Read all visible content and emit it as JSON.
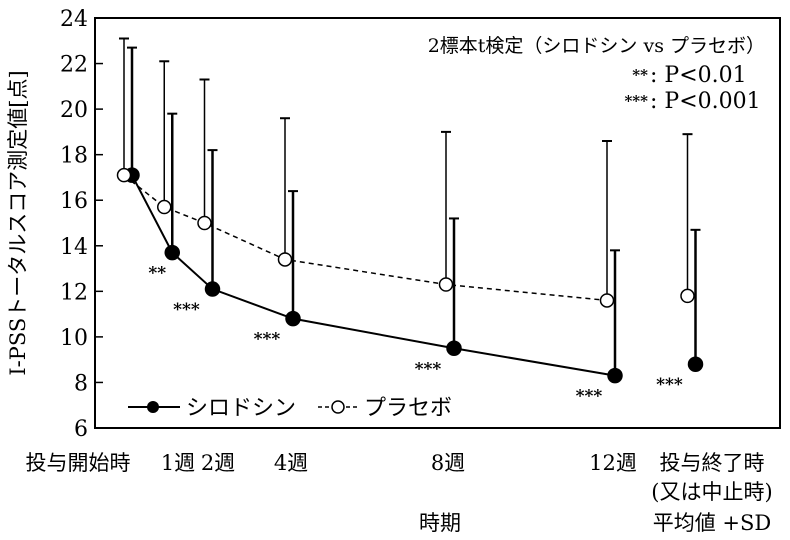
{
  "chart_data": {
    "type": "line",
    "ylabel": "I-PSSトータルスコア測定値[点]",
    "xlabel": "時期",
    "note_bottom": "平均値 +SD",
    "ylim": [
      6,
      24
    ],
    "yticks": [
      "6",
      "8",
      "10",
      "12",
      "14",
      "16",
      "18",
      "20",
      "22",
      "24"
    ],
    "categories": [
      "投与開始時",
      "1週",
      "2週",
      "4週",
      "8週",
      "12週",
      "投与終了時"
    ],
    "category_sub": "(又は中止時)",
    "x_weeks": [
      0,
      1,
      2,
      4,
      8,
      12,
      14
    ],
    "legend_position": "bottom-left",
    "annotation_title": "2標本t検定（シロドシン vs プラセボ）",
    "annotations": [
      {
        "mark": "**",
        "text": ": P<0.01"
      },
      {
        "mark": "***",
        "text": ": P<0.001"
      }
    ],
    "series": [
      {
        "name": "シロドシン",
        "marker": "filled-circle",
        "line": "solid",
        "values": [
          17.1,
          13.7,
          12.1,
          10.8,
          9.5,
          8.3,
          8.8
        ],
        "sd_top": [
          22.7,
          19.8,
          18.2,
          16.4,
          15.2,
          13.8,
          14.7
        ],
        "significance": [
          "",
          "**",
          "***",
          "***",
          "***",
          "***",
          "***"
        ],
        "connected_points": 6
      },
      {
        "name": "プラセボ",
        "marker": "open-circle",
        "line": "dashed",
        "values": [
          17.1,
          15.7,
          15.0,
          13.4,
          12.3,
          11.6,
          11.8
        ],
        "sd_top": [
          23.1,
          22.1,
          21.3,
          19.6,
          19.0,
          18.6,
          18.9
        ],
        "connected_points": 6
      }
    ]
  }
}
